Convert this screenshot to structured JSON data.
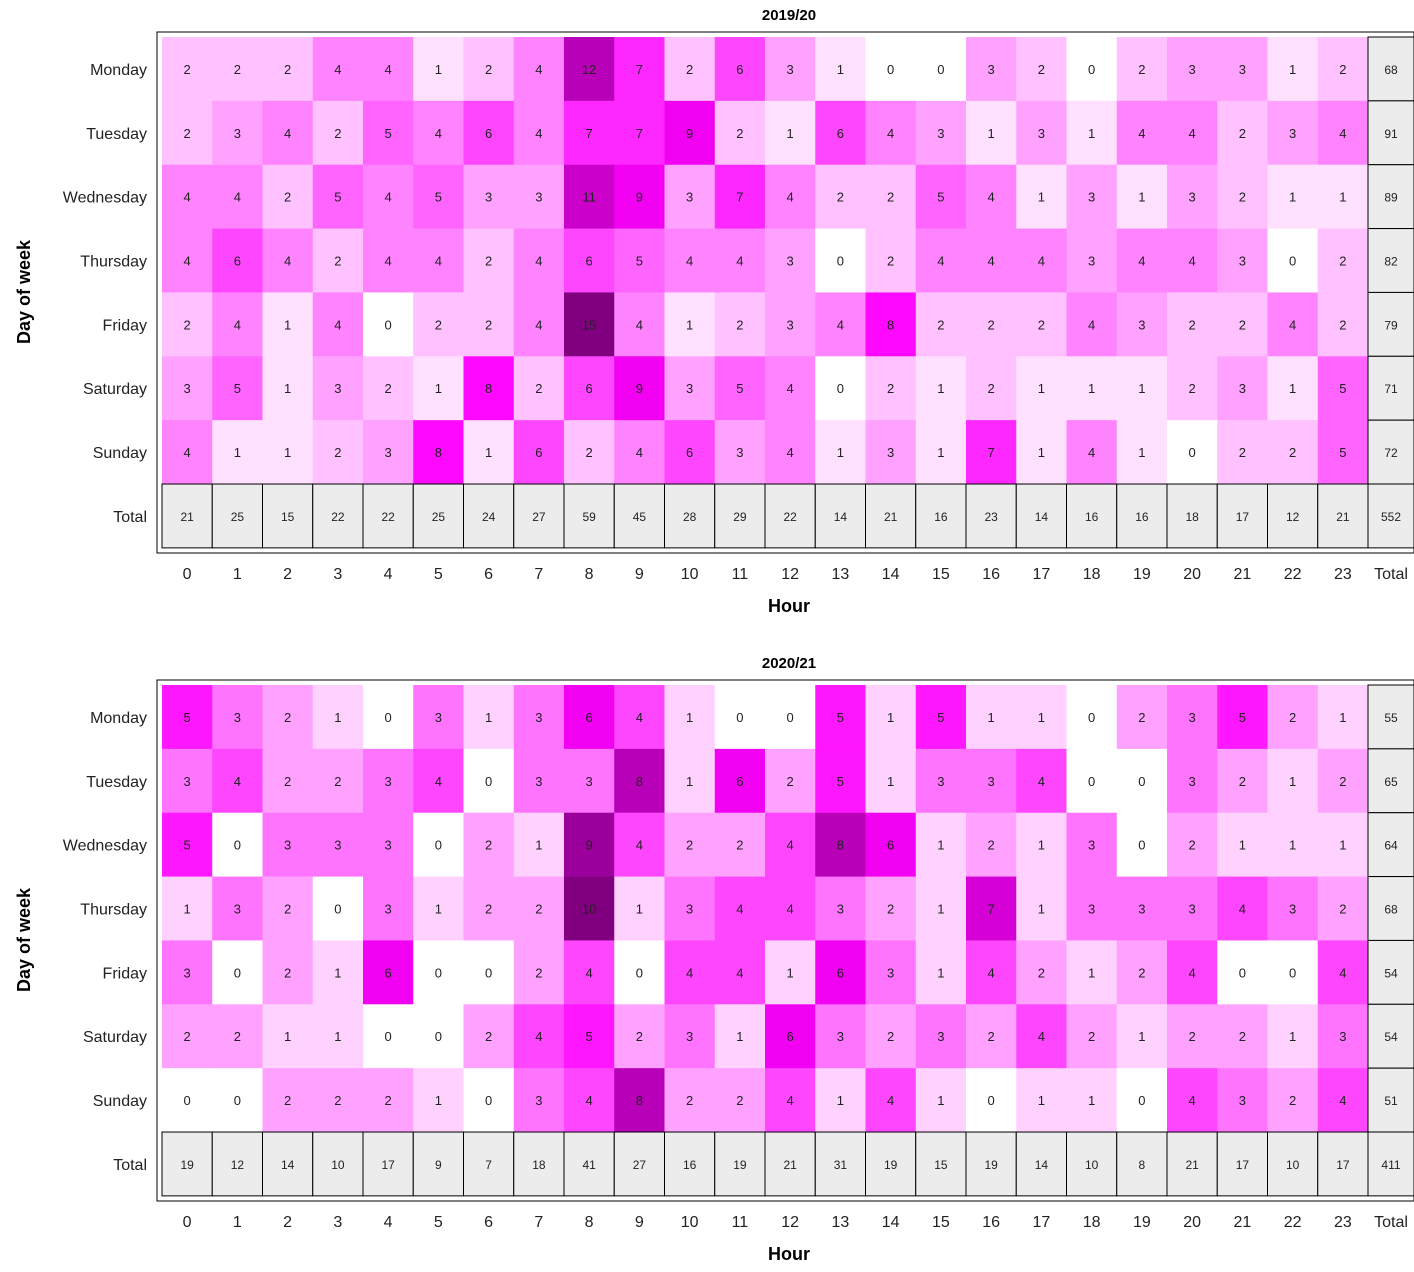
{
  "chart_data": [
    {
      "type": "heatmap",
      "title": "2019/20",
      "xlabel": "Hour",
      "ylabel": "Day of week",
      "x_categories": [
        "0",
        "1",
        "2",
        "3",
        "4",
        "5",
        "6",
        "7",
        "8",
        "9",
        "10",
        "11",
        "12",
        "13",
        "14",
        "15",
        "16",
        "17",
        "18",
        "19",
        "20",
        "21",
        "22",
        "23"
      ],
      "y_categories": [
        "Monday",
        "Tuesday",
        "Wednesday",
        "Thursday",
        "Friday",
        "Saturday",
        "Sunday"
      ],
      "total_label": "Total",
      "values": [
        [
          2,
          2,
          2,
          4,
          4,
          1,
          2,
          4,
          12,
          7,
          2,
          6,
          3,
          1,
          0,
          0,
          3,
          2,
          0,
          2,
          3,
          3,
          1,
          2
        ],
        [
          2,
          3,
          4,
          2,
          5,
          4,
          6,
          4,
          7,
          7,
          9,
          2,
          1,
          6,
          4,
          3,
          1,
          3,
          1,
          4,
          4,
          2,
          3,
          4
        ],
        [
          4,
          4,
          2,
          5,
          4,
          5,
          3,
          3,
          11,
          9,
          3,
          7,
          4,
          2,
          2,
          5,
          4,
          1,
          3,
          1,
          3,
          2,
          1,
          1
        ],
        [
          4,
          6,
          4,
          2,
          4,
          4,
          2,
          4,
          6,
          5,
          4,
          4,
          3,
          0,
          2,
          4,
          4,
          4,
          3,
          4,
          4,
          3,
          0,
          2
        ],
        [
          2,
          4,
          1,
          4,
          0,
          2,
          2,
          4,
          15,
          4,
          1,
          2,
          3,
          4,
          8,
          2,
          2,
          2,
          4,
          3,
          2,
          2,
          4,
          2
        ],
        [
          3,
          5,
          1,
          3,
          2,
          1,
          8,
          2,
          6,
          9,
          3,
          5,
          4,
          0,
          2,
          1,
          2,
          1,
          1,
          1,
          2,
          3,
          1,
          5
        ],
        [
          4,
          1,
          1,
          2,
          3,
          8,
          1,
          6,
          2,
          4,
          6,
          3,
          4,
          1,
          3,
          1,
          7,
          1,
          4,
          1,
          0,
          2,
          2,
          5
        ]
      ],
      "row_totals": [
        68,
        91,
        89,
        82,
        79,
        71,
        72
      ],
      "col_totals": [
        21,
        25,
        15,
        22,
        22,
        25,
        24,
        27,
        59,
        45,
        28,
        29,
        22,
        14,
        21,
        16,
        23,
        14,
        16,
        16,
        18,
        17,
        12,
        21
      ],
      "grand_total": 552,
      "value_max": 15
    },
    {
      "type": "heatmap",
      "title": "2020/21",
      "xlabel": "Hour",
      "ylabel": "Day of week",
      "x_categories": [
        "0",
        "1",
        "2",
        "3",
        "4",
        "5",
        "6",
        "7",
        "8",
        "9",
        "10",
        "11",
        "12",
        "13",
        "14",
        "15",
        "16",
        "17",
        "18",
        "19",
        "20",
        "21",
        "22",
        "23"
      ],
      "y_categories": [
        "Monday",
        "Tuesday",
        "Wednesday",
        "Thursday",
        "Friday",
        "Saturday",
        "Sunday"
      ],
      "total_label": "Total",
      "values": [
        [
          5,
          3,
          2,
          1,
          0,
          3,
          1,
          3,
          6,
          4,
          1,
          0,
          0,
          5,
          1,
          5,
          1,
          1,
          0,
          2,
          3,
          5,
          2,
          1
        ],
        [
          3,
          4,
          2,
          2,
          3,
          4,
          0,
          3,
          3,
          8,
          1,
          6,
          2,
          5,
          1,
          3,
          3,
          4,
          0,
          0,
          3,
          2,
          1,
          2
        ],
        [
          5,
          0,
          3,
          3,
          3,
          0,
          2,
          1,
          9,
          4,
          2,
          2,
          4,
          8,
          6,
          1,
          2,
          1,
          3,
          0,
          2,
          1,
          1,
          1
        ],
        [
          1,
          3,
          2,
          0,
          3,
          1,
          2,
          2,
          10,
          1,
          3,
          4,
          4,
          3,
          2,
          1,
          7,
          1,
          3,
          3,
          3,
          4,
          3,
          2
        ],
        [
          3,
          0,
          2,
          1,
          6,
          0,
          0,
          2,
          4,
          0,
          4,
          4,
          1,
          6,
          3,
          1,
          4,
          2,
          1,
          2,
          4,
          0,
          0,
          4
        ],
        [
          2,
          2,
          1,
          1,
          0,
          0,
          2,
          4,
          5,
          2,
          3,
          1,
          6,
          3,
          2,
          3,
          2,
          4,
          2,
          1,
          2,
          2,
          1,
          3
        ],
        [
          0,
          0,
          2,
          2,
          2,
          1,
          0,
          3,
          4,
          8,
          2,
          2,
          4,
          1,
          4,
          1,
          0,
          1,
          1,
          0,
          4,
          3,
          2,
          4
        ]
      ],
      "row_totals": [
        55,
        65,
        64,
        68,
        54,
        54,
        51
      ],
      "col_totals": [
        19,
        12,
        14,
        10,
        17,
        9,
        7,
        18,
        41,
        27,
        16,
        19,
        21,
        31,
        19,
        15,
        19,
        14,
        10,
        8,
        21,
        17,
        10,
        17
      ],
      "grand_total": 411,
      "value_max": 10
    }
  ],
  "colors": {
    "low": "#ffffff",
    "mid": "#ff00ff",
    "high": "#800080",
    "total_fill": "#ececec",
    "border": "#000000"
  }
}
